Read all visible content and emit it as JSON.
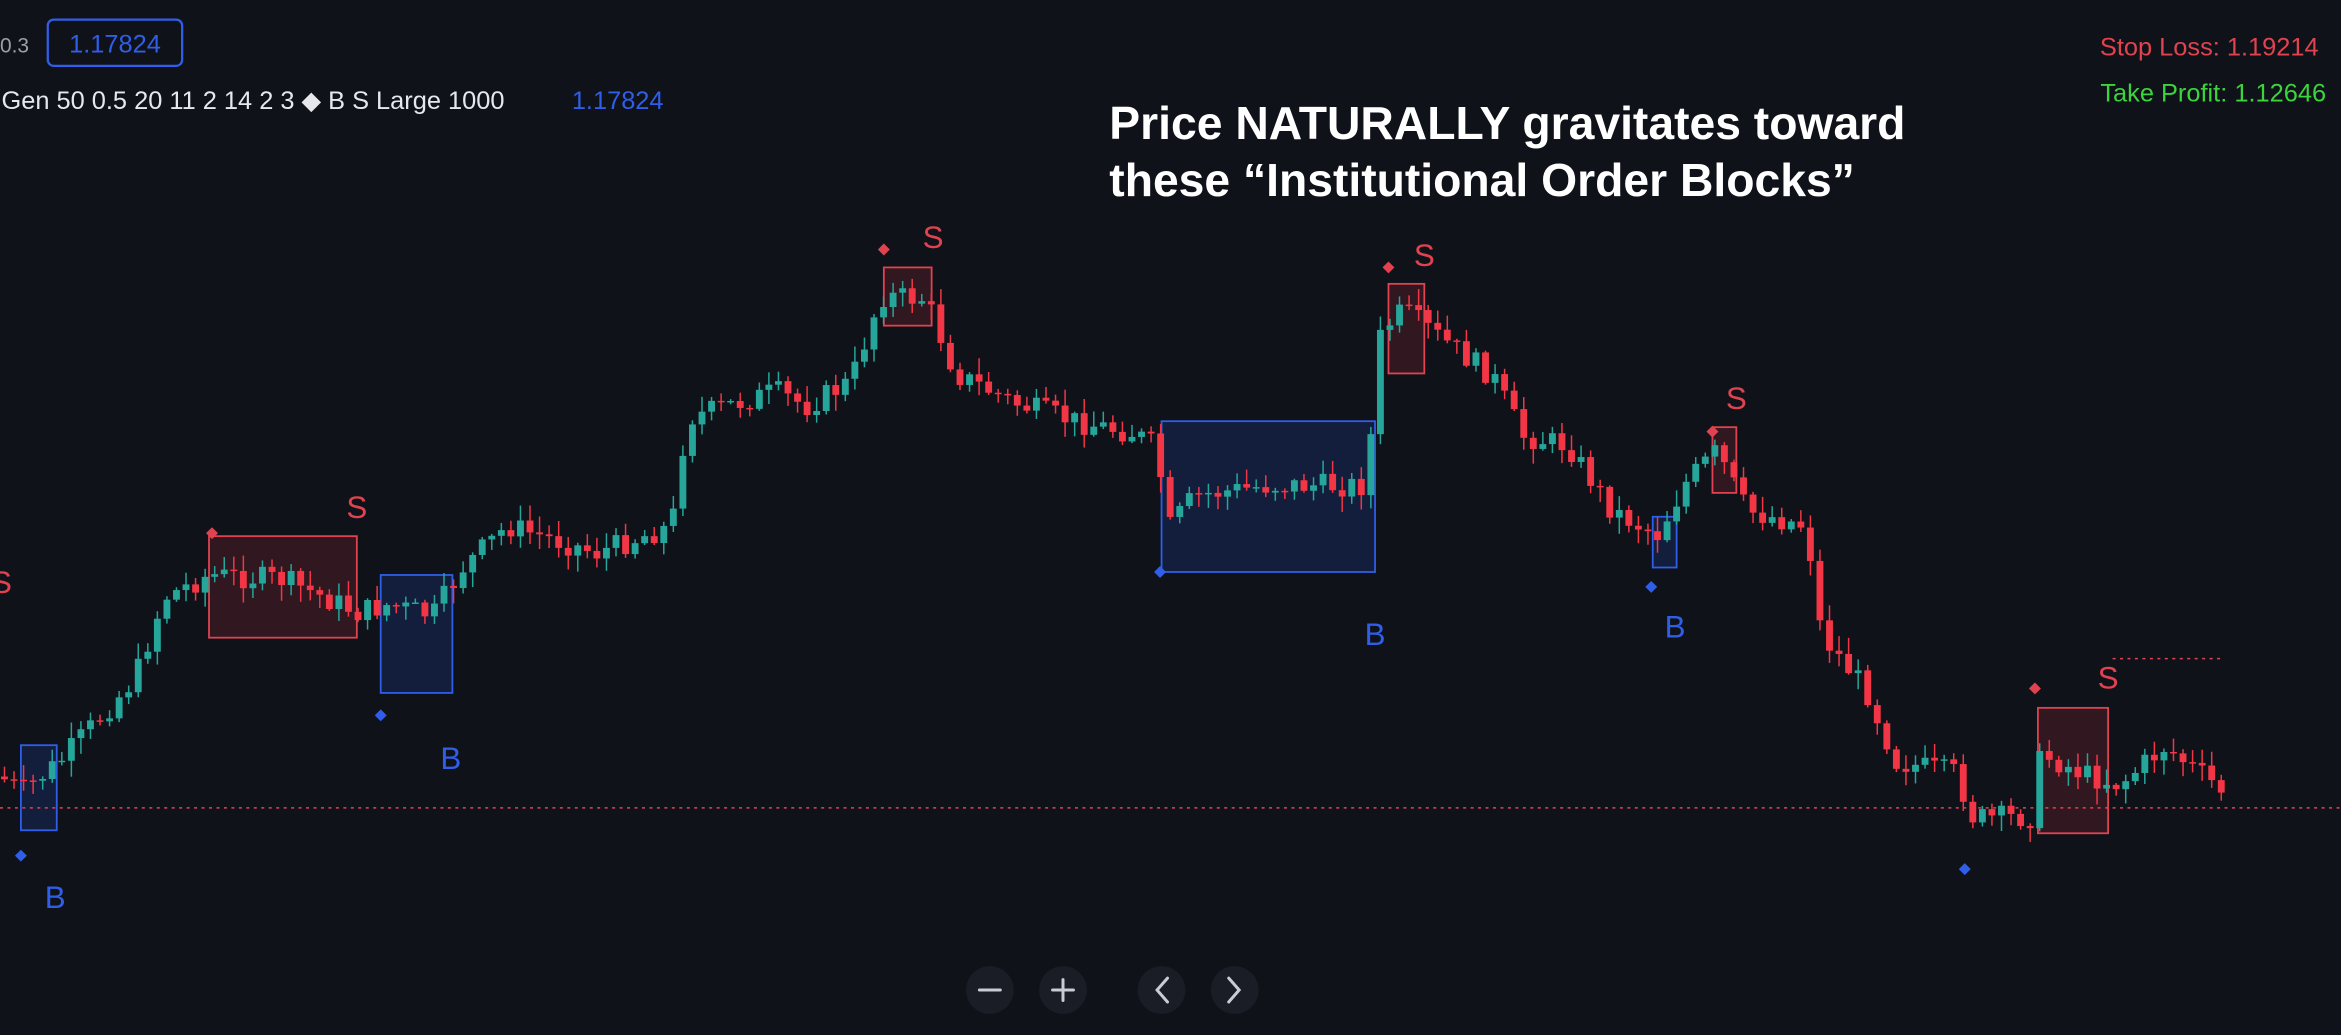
{
  "header": {
    "input_value": "0.3",
    "price_box": "1.17824",
    "indicator_settings": "Gen 50 0.5 20 11 2 14 2 3 ◆ B S Large 1000",
    "indicator_value": "1.17824"
  },
  "risk": {
    "stop_loss": "Stop Loss: 1.19214",
    "take_profit": "Take Profit: 1.12646"
  },
  "annotation": [
    "Price NATURALLY gravitates toward",
    "these “Institutional Order Blocks”"
  ],
  "signals": [
    "S",
    "S",
    "S",
    "S",
    "S",
    "S",
    "B",
    "B",
    "B",
    "B"
  ]
}
